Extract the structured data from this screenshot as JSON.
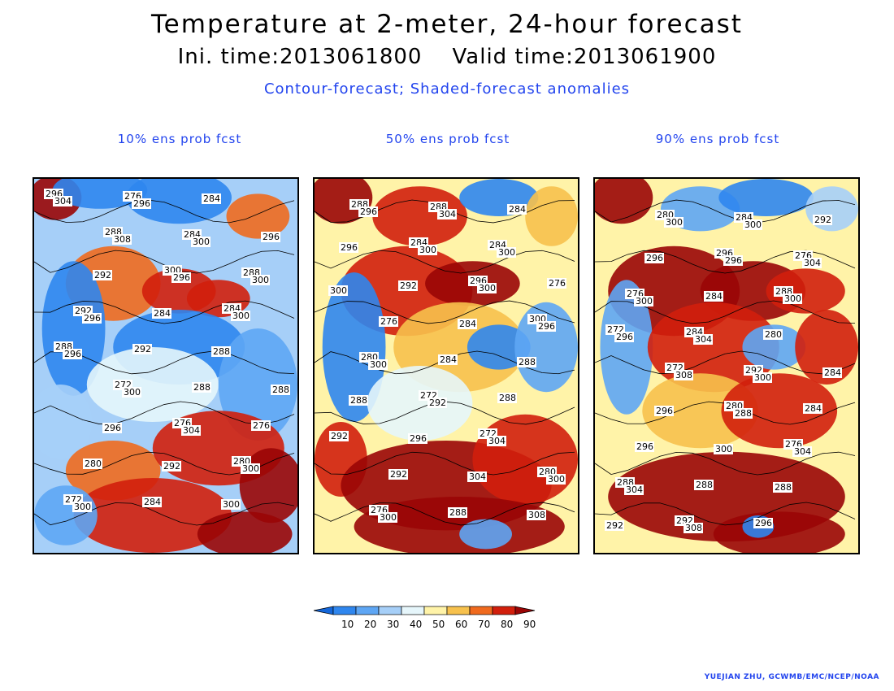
{
  "header": {
    "title": "Temperature at 2-meter, 24-hour forecast",
    "subtitle": "Ini. time:2013061800    Valid time:2013061900",
    "description": "Contour-forecast; Shaded-forecast anomalies"
  },
  "panels": [
    {
      "title": "10% ens prob fcst",
      "contour_labels": [
        "296",
        "288",
        "300",
        "284",
        "288",
        "272",
        "276",
        "280",
        "272",
        "276",
        "284",
        "288",
        "292",
        "292",
        "288",
        "276",
        "280",
        "284",
        "284",
        "296",
        "292",
        "284",
        "288",
        "288",
        "296",
        "292",
        "300",
        "304",
        "308",
        "296",
        "300",
        "296",
        "300",
        "304",
        "300",
        "300",
        "296",
        "300",
        "300",
        "296"
      ]
    },
    {
      "title": "50% ens prob fcst",
      "contour_labels": [
        "288",
        "284",
        "296",
        "300",
        "280",
        "272",
        "272",
        "280",
        "276",
        "288",
        "284",
        "276",
        "276",
        "284",
        "288",
        "292",
        "292",
        "288",
        "284",
        "296",
        "292",
        "284",
        "288",
        "288",
        "296",
        "304",
        "308",
        "296",
        "300",
        "300",
        "296",
        "300",
        "292",
        "304",
        "300",
        "300",
        "304",
        "300",
        "300"
      ]
    },
    {
      "title": "90% ens prob fcst",
      "contour_labels": [
        "280",
        "296",
        "288",
        "272",
        "272",
        "280",
        "276",
        "288",
        "292",
        "284",
        "276",
        "276",
        "284",
        "292",
        "284",
        "296",
        "288",
        "296",
        "292",
        "296",
        "284",
        "280",
        "284",
        "296",
        "300",
        "288",
        "292",
        "300",
        "296",
        "300",
        "296",
        "308",
        "288",
        "304",
        "304",
        "308",
        "300",
        "304",
        "300",
        "304",
        "300"
      ]
    }
  ],
  "colorbar": {
    "ticks": [
      "10",
      "20",
      "30",
      "40",
      "50",
      "60",
      "70",
      "80",
      "90"
    ],
    "colors": [
      "#1466d9",
      "#2f86ee",
      "#5ea6f4",
      "#a6cff8",
      "#e6f6fb",
      "#fff3a8",
      "#f7c14d",
      "#f06a1e",
      "#d21f0c",
      "#9a0505"
    ]
  },
  "credit": "YUEJIAN ZHU, GCWMB/EMC/NCEP/NOAA"
}
